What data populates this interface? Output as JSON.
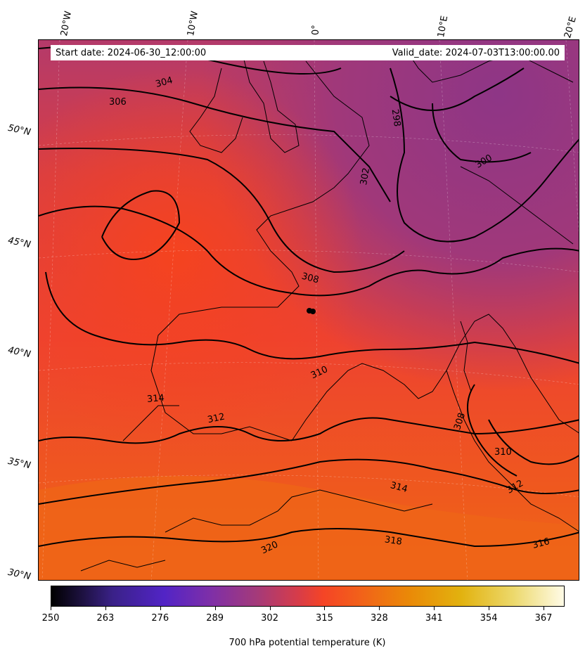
{
  "info": {
    "start": "Start date: 2024-06-30_12:00:00",
    "valid": "Valid_date: 2024-07-03T13:00:00.00"
  },
  "longitude_labels": [
    "20°W",
    "10°W",
    "0°",
    "10°E",
    "20°E"
  ],
  "latitude_labels": [
    "50°N",
    "45°N",
    "40°N",
    "35°N",
    "30°N"
  ],
  "contour_labels": [
    "304",
    "306",
    "298",
    "300",
    "302",
    "308",
    "310",
    "308",
    "312",
    "314",
    "310",
    "314",
    "312",
    "318",
    "320",
    "316"
  ],
  "colorbar": {
    "ticks": [
      "250",
      "263",
      "276",
      "289",
      "302",
      "315",
      "328",
      "341",
      "354",
      "367"
    ],
    "label": "700 hPa potential temperature (K)"
  },
  "colors": {
    "cold": "#9a3a7e",
    "mid": "#e8402f",
    "warm": "#ef6a17"
  }
}
